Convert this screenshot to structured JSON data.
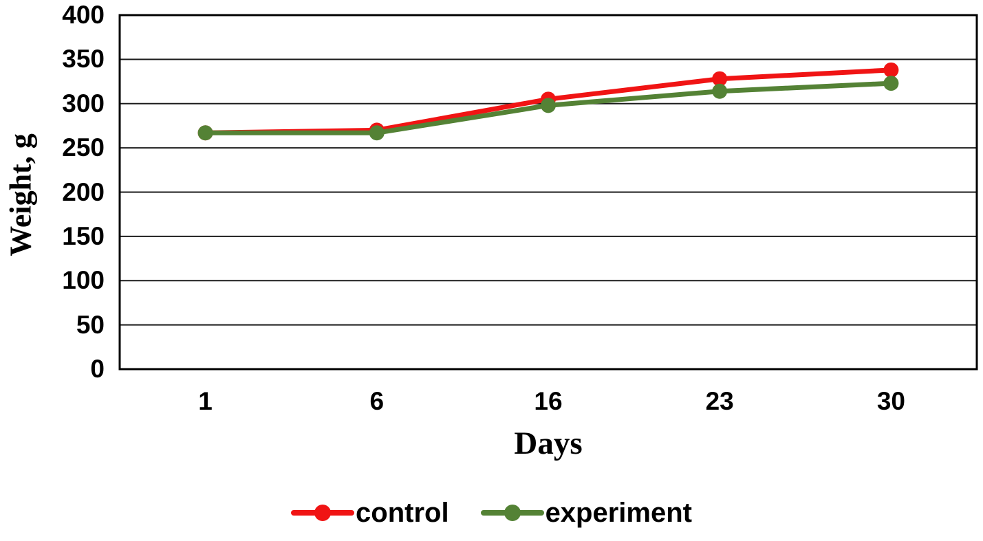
{
  "chart_data": {
    "type": "line",
    "title": "",
    "xlabel": "Days",
    "ylabel": "Weight, g",
    "categories": [
      "1",
      "6",
      "16",
      "23",
      "30"
    ],
    "series": [
      {
        "name": "control",
        "color": "#F01414",
        "values": [
          267,
          270,
          305,
          328,
          338
        ]
      },
      {
        "name": "experiment",
        "color": "#548235",
        "values": [
          267,
          267,
          298,
          314,
          323
        ]
      }
    ],
    "ylim": [
      0,
      400
    ],
    "yticks": [
      0,
      50,
      100,
      150,
      200,
      250,
      300,
      350,
      400
    ],
    "grid": "horizontal",
    "legend_position": "bottom",
    "marker": "circle"
  },
  "colors": {
    "background": "#ffffff",
    "axis_border": "#000000",
    "gridline": "#1c1c1c",
    "text": "#000000"
  }
}
